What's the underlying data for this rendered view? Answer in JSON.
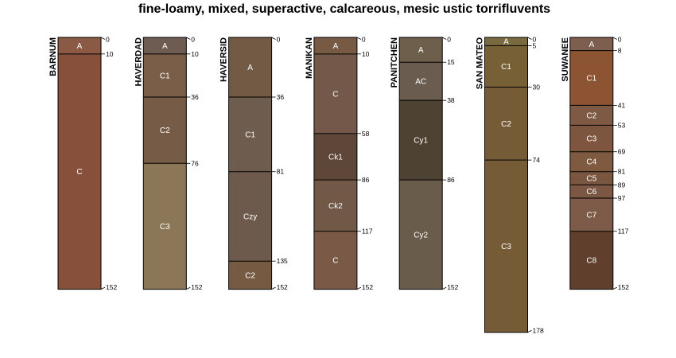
{
  "title": "fine-loamy, mixed, superactive, calcareous, mesic ustic torrifluvents",
  "colors": {
    "tick": "#000000",
    "border": "#000000",
    "label": "#ffffff",
    "background": "#ffffff"
  },
  "chart_data": {
    "type": "soil-profile-sketch",
    "depth_unit": "cm",
    "profiles": [
      {
        "name": "BARNUM",
        "horizons": [
          {
            "name": "A",
            "top": 0,
            "bottom": 10,
            "color": "#8a5a44"
          },
          {
            "name": "C",
            "top": 10,
            "bottom": 152,
            "color": "#87503a"
          }
        ]
      },
      {
        "name": "HAVERDAD",
        "horizons": [
          {
            "name": "A",
            "top": 0,
            "bottom": 10,
            "color": "#6e5c52"
          },
          {
            "name": "C1",
            "top": 10,
            "bottom": 36,
            "color": "#7a5e48"
          },
          {
            "name": "C2",
            "top": 36,
            "bottom": 76,
            "color": "#765c46"
          },
          {
            "name": "C3",
            "top": 76,
            "bottom": 152,
            "color": "#8c7658"
          }
        ]
      },
      {
        "name": "HAVERSID",
        "horizons": [
          {
            "name": "A",
            "top": 0,
            "bottom": 36,
            "color": "#725a44"
          },
          {
            "name": "C1",
            "top": 36,
            "bottom": 81,
            "color": "#6e5c4e"
          },
          {
            "name": "Czy",
            "top": 81,
            "bottom": 135,
            "color": "#6e5a4c"
          },
          {
            "name": "C2",
            "top": 135,
            "bottom": 152,
            "color": "#765a42"
          }
        ]
      },
      {
        "name": "MANIKAN",
        "horizons": [
          {
            "name": "A",
            "top": 0,
            "bottom": 10,
            "color": "#765a44"
          },
          {
            "name": "C",
            "top": 10,
            "bottom": 58,
            "color": "#74584a"
          },
          {
            "name": "Ck1",
            "top": 58,
            "bottom": 86,
            "color": "#5e4638"
          },
          {
            "name": "Ck2",
            "top": 86,
            "bottom": 117,
            "color": "#725846"
          },
          {
            "name": "C",
            "top": 117,
            "bottom": 152,
            "color": "#7a5a46"
          }
        ]
      },
      {
        "name": "PANITCHEN",
        "horizons": [
          {
            "name": "A",
            "top": 0,
            "bottom": 15,
            "color": "#6e5e4c"
          },
          {
            "name": "AC",
            "top": 15,
            "bottom": 38,
            "color": "#6a5c4e"
          },
          {
            "name": "Cy1",
            "top": 38,
            "bottom": 86,
            "color": "#4e4232"
          },
          {
            "name": "Cy2",
            "top": 86,
            "bottom": 152,
            "color": "#6a5c4a"
          }
        ]
      },
      {
        "name": "SAN MATEO",
        "horizons": [
          {
            "name": "A",
            "top": 0,
            "bottom": 5,
            "color": "#7a6a40"
          },
          {
            "name": "C1",
            "top": 5,
            "bottom": 30,
            "color": "#786036"
          },
          {
            "name": "C2",
            "top": 30,
            "bottom": 74,
            "color": "#765c36"
          },
          {
            "name": "C3",
            "top": 74,
            "bottom": 178,
            "color": "#765c36"
          }
        ]
      },
      {
        "name": "SUWANEE",
        "horizons": [
          {
            "name": "A",
            "top": 0,
            "bottom": 8,
            "color": "#7e5e4e"
          },
          {
            "name": "C1",
            "top": 8,
            "bottom": 41,
            "color": "#8c5432"
          },
          {
            "name": "C2",
            "top": 41,
            "bottom": 53,
            "color": "#7e5a44"
          },
          {
            "name": "C3",
            "top": 53,
            "bottom": 69,
            "color": "#7e5640"
          },
          {
            "name": "C4",
            "top": 69,
            "bottom": 81,
            "color": "#7e5a40"
          },
          {
            "name": "C5",
            "top": 81,
            "bottom": 89,
            "color": "#7a5640"
          },
          {
            "name": "C6",
            "top": 89,
            "bottom": 97,
            "color": "#7c5844"
          },
          {
            "name": "C7",
            "top": 97,
            "bottom": 117,
            "color": "#7e5a48"
          },
          {
            "name": "C8",
            "top": 117,
            "bottom": 152,
            "color": "#60402c"
          }
        ]
      }
    ]
  }
}
